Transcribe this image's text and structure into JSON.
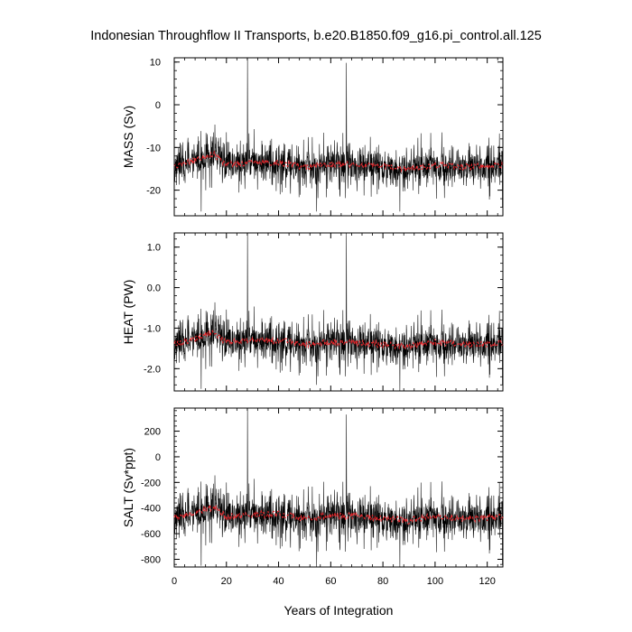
{
  "title": "Indonesian Throughflow II Transports, b.e20.B1850.f09_g16.pi_control.all.125",
  "colors": {
    "raw": "#000000",
    "smoothed": "#e8262b"
  },
  "chart_data": [
    {
      "type": "line",
      "ylabel": "MASS (Sv)",
      "xlabel": "",
      "xlim": [
        0,
        126
      ],
      "ylim": [
        -26,
        11
      ],
      "yticks": [
        10,
        0,
        -10,
        -20
      ],
      "ytick_labels": [
        "10",
        "0",
        "-10",
        "-20"
      ],
      "grid": false,
      "series": [
        {
          "style": "raw monthly",
          "mean": -14,
          "amplitude": 4.2,
          "spikes": [
            [
              28.1,
              11
            ],
            [
              66.0,
              9.8
            ],
            [
              10.3,
              -25
            ],
            [
              54.6,
              -25
            ],
            [
              86.5,
              -25
            ],
            [
              125.8,
              -24
            ]
          ]
        },
        {
          "style": "smoothed",
          "mean": -14,
          "trend_points": [
            [
              0,
              -14.5
            ],
            [
              5,
              -13.5
            ],
            [
              10,
              -12.5
            ],
            [
              15,
              -11.5
            ],
            [
              20,
              -14
            ],
            [
              30,
              -13.5
            ],
            [
              40,
              -13.5
            ],
            [
              50,
              -14.5
            ],
            [
              60,
              -14
            ],
            [
              70,
              -14
            ],
            [
              80,
              -14.5
            ],
            [
              90,
              -15
            ],
            [
              100,
              -14
            ],
            [
              110,
              -14.5
            ],
            [
              120,
              -14.5
            ],
            [
              126,
              -14
            ]
          ]
        }
      ]
    },
    {
      "type": "line",
      "ylabel": "HEAT (PW)",
      "xlabel": "",
      "xlim": [
        0,
        126
      ],
      "ylim": [
        -2.55,
        1.35
      ],
      "yticks": [
        1.0,
        0.0,
        -1.0,
        -2.0
      ],
      "ytick_labels": [
        "1.0",
        "0.0",
        "-1.0",
        "-2.0"
      ],
      "grid": false,
      "series": [
        {
          "style": "raw monthly",
          "mean": -1.35,
          "amplitude": 0.45,
          "spikes": [
            [
              28.1,
              1.35
            ],
            [
              66.0,
              1.35
            ],
            [
              10.3,
              -2.5
            ],
            [
              54.6,
              -2.4
            ],
            [
              86.5,
              -2.55
            ],
            [
              125.8,
              -2.4
            ]
          ]
        },
        {
          "style": "smoothed",
          "mean": -1.35,
          "trend_points": [
            [
              0,
              -1.4
            ],
            [
              5,
              -1.3
            ],
            [
              10,
              -1.2
            ],
            [
              15,
              -1.1
            ],
            [
              20,
              -1.35
            ],
            [
              30,
              -1.3
            ],
            [
              40,
              -1.3
            ],
            [
              50,
              -1.4
            ],
            [
              60,
              -1.35
            ],
            [
              70,
              -1.35
            ],
            [
              80,
              -1.4
            ],
            [
              90,
              -1.45
            ],
            [
              100,
              -1.35
            ],
            [
              110,
              -1.4
            ],
            [
              120,
              -1.4
            ],
            [
              126,
              -1.35
            ]
          ]
        }
      ]
    },
    {
      "type": "line",
      "ylabel": "SALT (Sv*ppt)",
      "xlabel": "Years of Integration",
      "xlim": [
        0,
        126
      ],
      "ylim": [
        -860,
        380
      ],
      "yticks": [
        200,
        0,
        -200,
        -400,
        -600,
        -800
      ],
      "ytick_labels": [
        "200",
        "0",
        "-200",
        "-400",
        "-600",
        "-800"
      ],
      "xticks": [
        0,
        20,
        40,
        60,
        80,
        100,
        120
      ],
      "xtick_labels": [
        "0",
        "20",
        "40",
        "60",
        "80",
        "100",
        "120"
      ],
      "grid": false,
      "series": [
        {
          "style": "raw monthly",
          "mean": -460,
          "amplitude": 150,
          "spikes": [
            [
              28.1,
              380
            ],
            [
              66.0,
              330
            ],
            [
              10.3,
              -850
            ],
            [
              54.6,
              -860
            ],
            [
              86.5,
              -860
            ],
            [
              125.8,
              -840
            ]
          ]
        },
        {
          "style": "smoothed",
          "mean": -460,
          "trend_points": [
            [
              0,
              -480
            ],
            [
              5,
              -450
            ],
            [
              10,
              -420
            ],
            [
              15,
              -390
            ],
            [
              20,
              -470
            ],
            [
              30,
              -450
            ],
            [
              40,
              -450
            ],
            [
              50,
              -480
            ],
            [
              60,
              -460
            ],
            [
              70,
              -460
            ],
            [
              80,
              -480
            ],
            [
              90,
              -500
            ],
            [
              100,
              -460
            ],
            [
              110,
              -480
            ],
            [
              120,
              -480
            ],
            [
              126,
              -460
            ]
          ]
        }
      ]
    }
  ]
}
